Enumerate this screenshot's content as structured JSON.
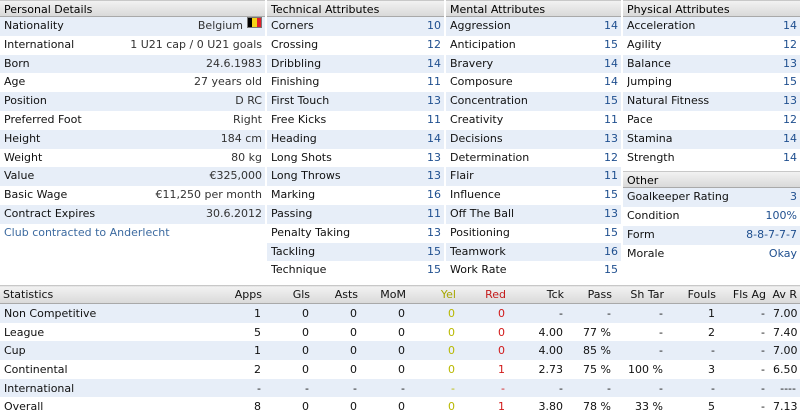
{
  "personal": {
    "title": "Personal Details",
    "rows": [
      {
        "label": "Nationality",
        "value": "Belgium"
      },
      {
        "label": "International",
        "value": "1 U21 cap / 0 U21 goals"
      },
      {
        "label": "Born",
        "value": "24.6.1983"
      },
      {
        "label": "Age",
        "value": "27 years old"
      },
      {
        "label": "Position",
        "value": "D RC"
      },
      {
        "label": "Preferred Foot",
        "value": "Right"
      },
      {
        "label": "Height",
        "value": "184 cm"
      },
      {
        "label": "Weight",
        "value": "80 kg"
      },
      {
        "label": "Value",
        "value": "€325,000"
      },
      {
        "label": "Basic Wage",
        "value": "€11,250 per month"
      },
      {
        "label": "Contract Expires",
        "value": "30.6.2012"
      }
    ],
    "club_link": "Club contracted to Anderlecht",
    "flag_colors": [
      "#000000",
      "#f5d418",
      "#e1212b"
    ]
  },
  "technical": {
    "title": "Technical Attributes",
    "rows": [
      {
        "label": "Corners",
        "value": "10"
      },
      {
        "label": "Crossing",
        "value": "12"
      },
      {
        "label": "Dribbling",
        "value": "14"
      },
      {
        "label": "Finishing",
        "value": "11"
      },
      {
        "label": "First Touch",
        "value": "13"
      },
      {
        "label": "Free Kicks",
        "value": "11"
      },
      {
        "label": "Heading",
        "value": "14"
      },
      {
        "label": "Long Shots",
        "value": "13"
      },
      {
        "label": "Long Throws",
        "value": "13"
      },
      {
        "label": "Marking",
        "value": "16"
      },
      {
        "label": "Passing",
        "value": "11"
      },
      {
        "label": "Penalty Taking",
        "value": "13"
      },
      {
        "label": "Tackling",
        "value": "15"
      },
      {
        "label": "Technique",
        "value": "15"
      }
    ]
  },
  "mental": {
    "title": "Mental Attributes",
    "rows": [
      {
        "label": "Aggression",
        "value": "14"
      },
      {
        "label": "Anticipation",
        "value": "15"
      },
      {
        "label": "Bravery",
        "value": "14"
      },
      {
        "label": "Composure",
        "value": "14"
      },
      {
        "label": "Concentration",
        "value": "15"
      },
      {
        "label": "Creativity",
        "value": "11"
      },
      {
        "label": "Decisions",
        "value": "13"
      },
      {
        "label": "Determination",
        "value": "12"
      },
      {
        "label": "Flair",
        "value": "11"
      },
      {
        "label": "Influence",
        "value": "15"
      },
      {
        "label": "Off The Ball",
        "value": "13"
      },
      {
        "label": "Positioning",
        "value": "15"
      },
      {
        "label": "Teamwork",
        "value": "16"
      },
      {
        "label": "Work Rate",
        "value": "15"
      }
    ]
  },
  "physical": {
    "title": "Physical Attributes",
    "rows": [
      {
        "label": "Acceleration",
        "value": "14"
      },
      {
        "label": "Agility",
        "value": "12"
      },
      {
        "label": "Balance",
        "value": "13"
      },
      {
        "label": "Jumping",
        "value": "15"
      },
      {
        "label": "Natural Fitness",
        "value": "13"
      },
      {
        "label": "Pace",
        "value": "12"
      },
      {
        "label": "Stamina",
        "value": "14"
      },
      {
        "label": "Strength",
        "value": "14"
      }
    ]
  },
  "other": {
    "title": "Other",
    "rows": [
      {
        "label": "Goalkeeper Rating",
        "value": "3"
      },
      {
        "label": "Condition",
        "value": "100%"
      },
      {
        "label": "Form",
        "value": "8-8-7-7-7"
      },
      {
        "label": "Morale",
        "value": "Okay"
      }
    ]
  },
  "statistics": {
    "headers": [
      "Statistics",
      "Apps",
      "Gls",
      "Asts",
      "MoM",
      "Yel",
      "Red",
      "Tck",
      "Pass",
      "Sh Tar",
      "Fouls",
      "Fls Ag",
      "Av R"
    ],
    "rows": [
      [
        "Non Competitive",
        "1",
        "0",
        "0",
        "0",
        "0",
        "0",
        "-",
        "-",
        "-",
        "1",
        "-",
        "7.00"
      ],
      [
        "League",
        "5",
        "0",
        "0",
        "0",
        "0",
        "0",
        "4.00",
        "77 %",
        "-",
        "2",
        "-",
        "7.40"
      ],
      [
        "Cup",
        "1",
        "0",
        "0",
        "0",
        "0",
        "0",
        "4.00",
        "85 %",
        "-",
        "-",
        "-",
        "7.00"
      ],
      [
        "Continental",
        "2",
        "0",
        "0",
        "0",
        "0",
        "1",
        "2.73",
        "75 %",
        "100 %",
        "3",
        "-",
        "6.50"
      ],
      [
        "International",
        "-",
        "-",
        "-",
        "-",
        "-",
        "-",
        "-",
        "-",
        "-",
        "-",
        "-",
        "----"
      ],
      [
        "Overall",
        "8",
        "0",
        "0",
        "0",
        "0",
        "1",
        "3.80",
        "78 %",
        "33 %",
        "5",
        "-",
        "7.13"
      ]
    ]
  }
}
